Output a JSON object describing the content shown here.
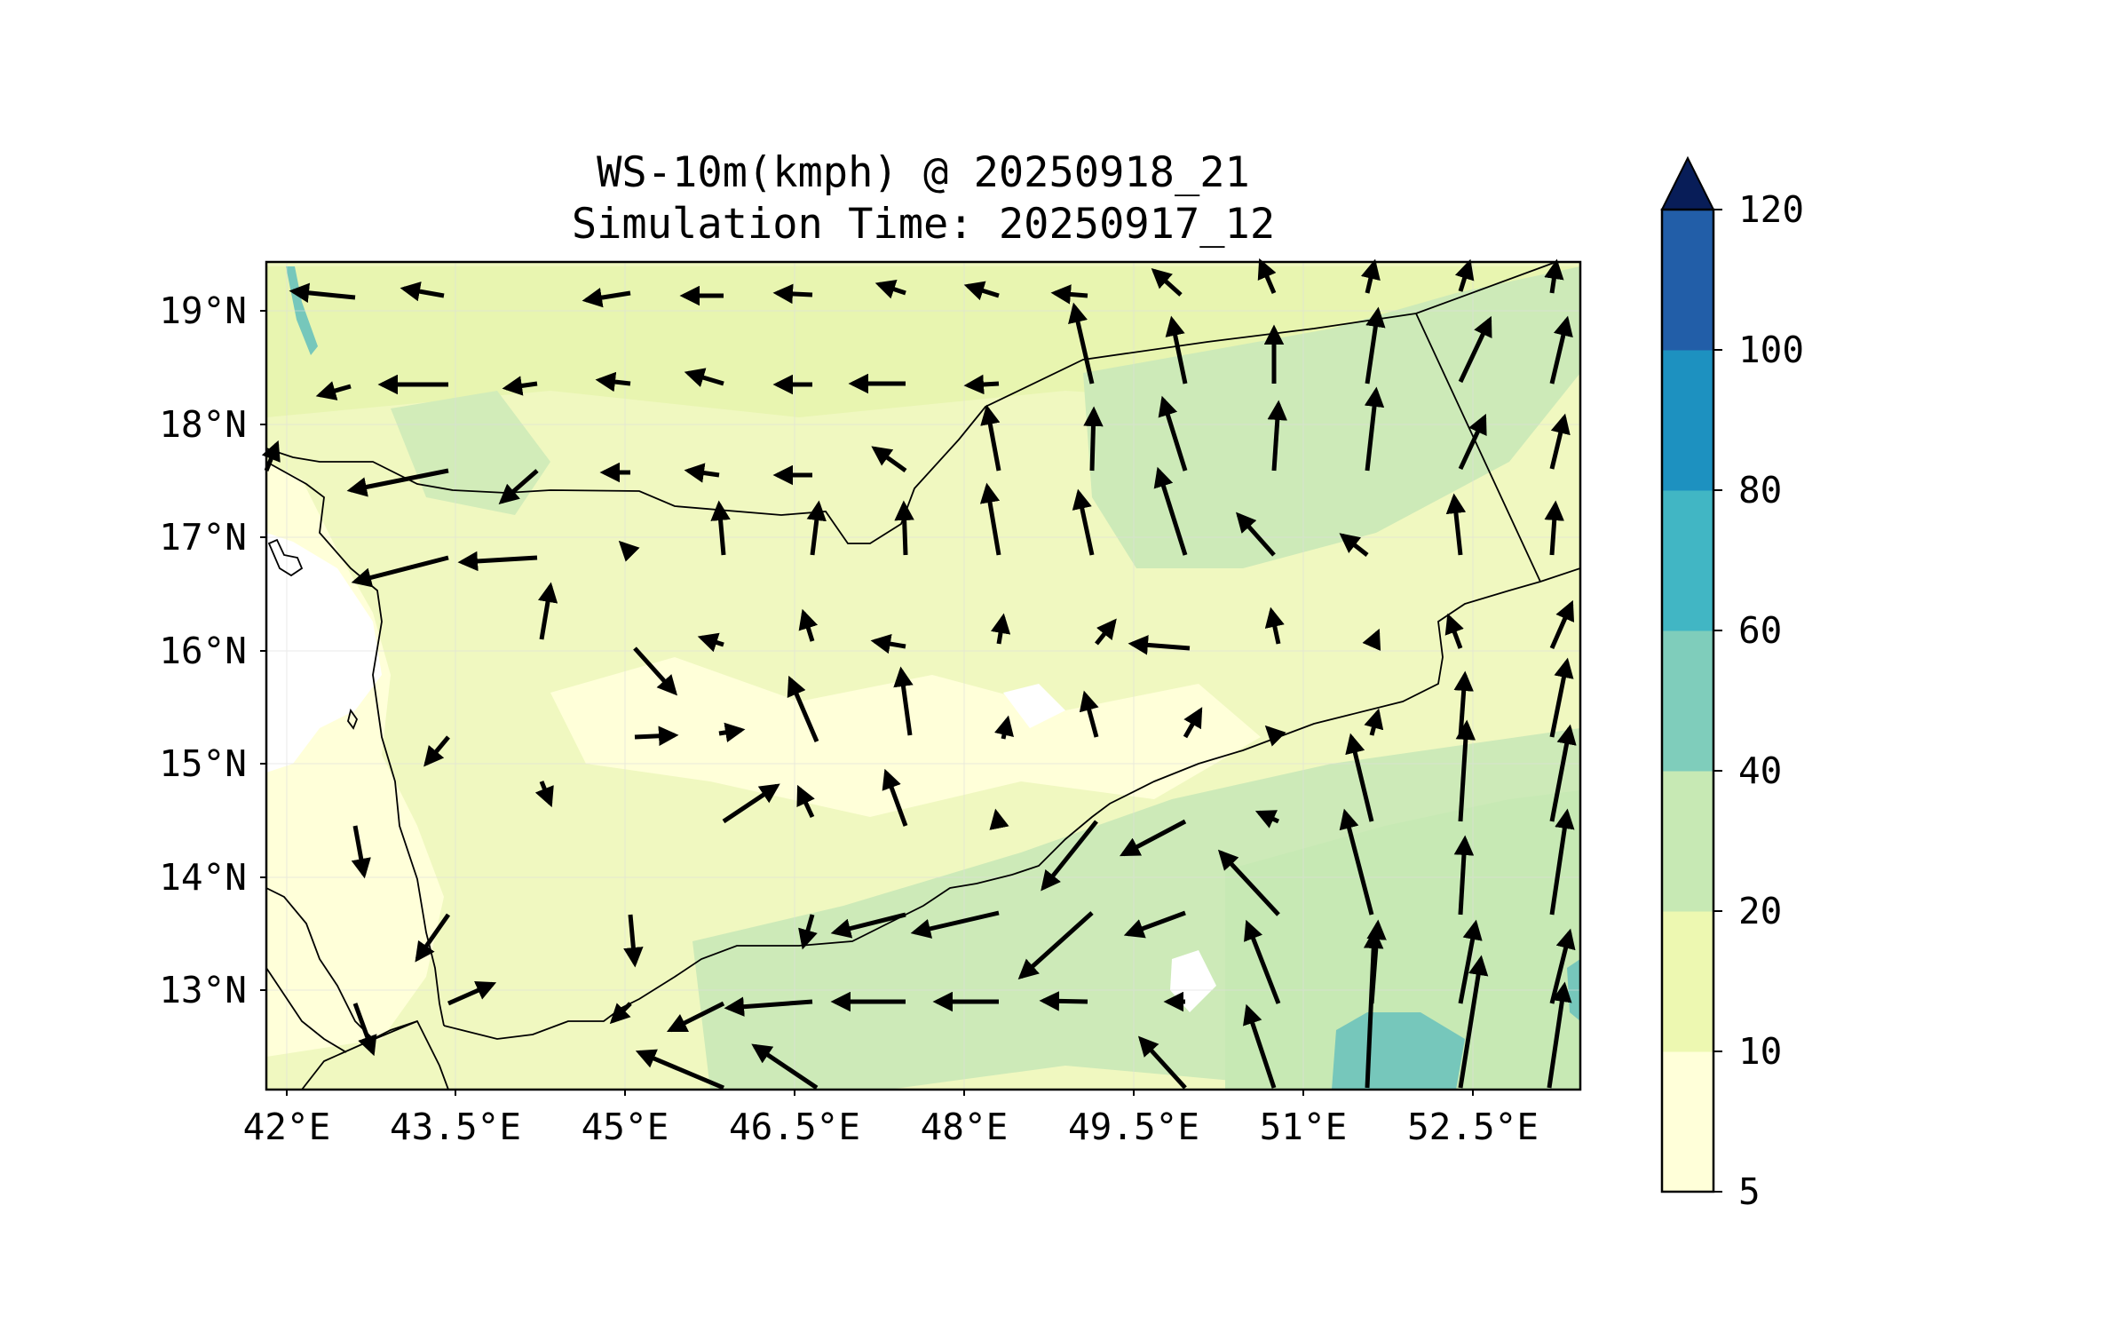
{
  "title": {
    "line1": "WS-10m(kmph) @ 20250918_21",
    "line2": "Simulation Time: 20250917_12"
  },
  "map": {
    "xticks": [
      "42°E",
      "43.5°E",
      "45°E",
      "46.5°E",
      "48°E",
      "49.5°E",
      "51°E",
      "52.5°E"
    ],
    "yticks": [
      "19°N",
      "18°N",
      "17°N",
      "16°N",
      "15°N",
      "14°N",
      "13°N"
    ],
    "background_color": "#f0f8c0"
  },
  "colorbar": {
    "levels": [
      "5",
      "10",
      "20",
      "40",
      "60",
      "80",
      "100",
      "120"
    ],
    "colors": [
      "#ffffd9",
      "#edf8b1",
      "#c7e9b4",
      "#7fcdbb",
      "#41b6c4",
      "#1d91c0",
      "#225ea8",
      "#253494"
    ],
    "extend_color": "#081d58"
  },
  "wind_vectors": [
    {
      "dir": "W",
      "row": 1
    },
    {
      "dir": "NE",
      "row": 5
    },
    {
      "dir": "N",
      "row": 7
    }
  ]
}
